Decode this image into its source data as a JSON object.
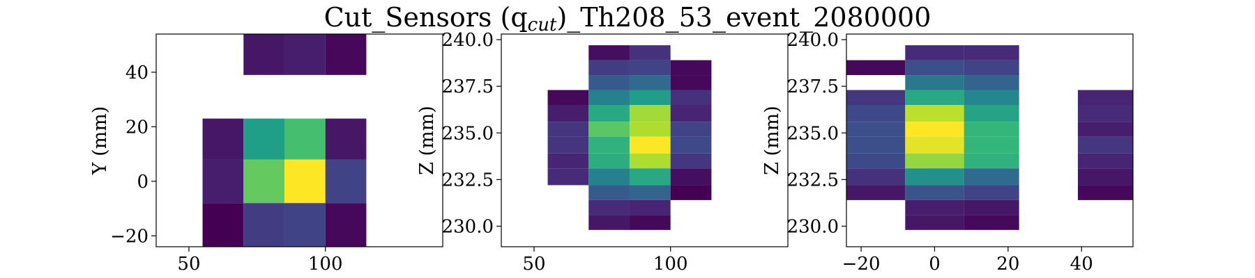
{
  "title": "Cut_Sensors (q",
  "title_sub": "cut",
  "title_rest": ")_Th208_53_event_2080000",
  "colormap": "viridis",
  "chart_data": [
    {
      "type": "heatmap",
      "xlabel": "",
      "ylabel": "Y (mm)",
      "xlim": [
        38,
        143
      ],
      "ylim": [
        -24,
        54
      ],
      "xticks": [
        {
          "v": 50,
          "label": "50"
        },
        {
          "v": 100,
          "label": "100"
        }
      ],
      "yticks": [
        {
          "v": -20,
          "label": "−20"
        },
        {
          "v": 0,
          "label": "0"
        },
        {
          "v": 20,
          "label": "20"
        },
        {
          "v": 40,
          "label": "40"
        }
      ],
      "cells": [
        {
          "x0": 70,
          "x1": 85,
          "y0": 39,
          "y1": 54,
          "v": 0.06
        },
        {
          "x0": 85,
          "x1": 100,
          "y0": 39,
          "y1": 54,
          "v": 0.08
        },
        {
          "x0": 100,
          "x1": 115,
          "y0": 39,
          "y1": 54,
          "v": 0.02
        },
        {
          "x0": 55,
          "x1": 70,
          "y0": 8,
          "y1": 23,
          "v": 0.06
        },
        {
          "x0": 70,
          "x1": 85,
          "y0": 8,
          "y1": 23,
          "v": 0.56
        },
        {
          "x0": 85,
          "x1": 100,
          "y0": 8,
          "y1": 23,
          "v": 0.7
        },
        {
          "x0": 100,
          "x1": 115,
          "y0": 8,
          "y1": 23,
          "v": 0.06
        },
        {
          "x0": 55,
          "x1": 70,
          "y0": -8,
          "y1": 8,
          "v": 0.08
        },
        {
          "x0": 70,
          "x1": 85,
          "y0": -8,
          "y1": 8,
          "v": 0.76
        },
        {
          "x0": 85,
          "x1": 100,
          "y0": -8,
          "y1": 8,
          "v": 1.0
        },
        {
          "x0": 100,
          "x1": 115,
          "y0": -8,
          "y1": 8,
          "v": 0.2
        },
        {
          "x0": 55,
          "x1": 70,
          "y0": -24,
          "y1": -8,
          "v": 0.0
        },
        {
          "x0": 70,
          "x1": 85,
          "y0": -24,
          "y1": -8,
          "v": 0.18
        },
        {
          "x0": 85,
          "x1": 100,
          "y0": -24,
          "y1": -8,
          "v": 0.2
        },
        {
          "x0": 100,
          "x1": 115,
          "y0": -24,
          "y1": -8,
          "v": 0.02
        }
      ]
    },
    {
      "type": "heatmap",
      "xlabel": "",
      "ylabel": "Z (mm)",
      "xlim": [
        38,
        143
      ],
      "ylim": [
        228.9,
        240.3
      ],
      "xticks": [
        {
          "v": 50,
          "label": "50"
        },
        {
          "v": 100,
          "label": "100"
        }
      ],
      "yticks": [
        {
          "v": 230,
          "label": "230.0"
        },
        {
          "v": 232.5,
          "label": "232.5"
        },
        {
          "v": 235,
          "label": "235.0"
        },
        {
          "v": 237.5,
          "label": "237.5"
        },
        {
          "v": 240,
          "label": "240.0"
        }
      ],
      "cells": [
        {
          "x0": 55,
          "x1": 70,
          "y0": 236.5,
          "y1": 237.3,
          "v": 0.02
        },
        {
          "x0": 55,
          "x1": 70,
          "y0": 235.6,
          "y1": 236.5,
          "v": 0.08
        },
        {
          "x0": 55,
          "x1": 70,
          "y0": 234.8,
          "y1": 235.6,
          "v": 0.15
        },
        {
          "x0": 55,
          "x1": 70,
          "y0": 233.9,
          "y1": 234.8,
          "v": 0.15
        },
        {
          "x0": 55,
          "x1": 70,
          "y0": 233.1,
          "y1": 233.9,
          "v": 0.1
        },
        {
          "x0": 55,
          "x1": 70,
          "y0": 232.2,
          "y1": 233.1,
          "v": 0.12
        },
        {
          "x0": 70,
          "x1": 85,
          "y0": 238.9,
          "y1": 239.7,
          "v": 0.04
        },
        {
          "x0": 70,
          "x1": 85,
          "y0": 238.1,
          "y1": 238.9,
          "v": 0.18
        },
        {
          "x0": 70,
          "x1": 85,
          "y0": 237.3,
          "y1": 238.1,
          "v": 0.28
        },
        {
          "x0": 70,
          "x1": 85,
          "y0": 236.5,
          "y1": 237.3,
          "v": 0.44
        },
        {
          "x0": 70,
          "x1": 85,
          "y0": 235.6,
          "y1": 236.5,
          "v": 0.6
        },
        {
          "x0": 70,
          "x1": 85,
          "y0": 234.8,
          "y1": 235.6,
          "v": 0.74
        },
        {
          "x0": 70,
          "x1": 85,
          "y0": 233.9,
          "y1": 234.8,
          "v": 0.64
        },
        {
          "x0": 70,
          "x1": 85,
          "y0": 233.1,
          "y1": 233.9,
          "v": 0.62
        },
        {
          "x0": 70,
          "x1": 85,
          "y0": 232.2,
          "y1": 233.1,
          "v": 0.44
        },
        {
          "x0": 70,
          "x1": 85,
          "y0": 231.4,
          "y1": 232.2,
          "v": 0.28
        },
        {
          "x0": 70,
          "x1": 85,
          "y0": 230.6,
          "y1": 231.4,
          "v": 0.12
        },
        {
          "x0": 70,
          "x1": 85,
          "y0": 229.8,
          "y1": 230.6,
          "v": 0.06
        },
        {
          "x0": 85,
          "x1": 100,
          "y0": 238.9,
          "y1": 239.7,
          "v": 0.14
        },
        {
          "x0": 85,
          "x1": 100,
          "y0": 238.1,
          "y1": 238.9,
          "v": 0.2
        },
        {
          "x0": 85,
          "x1": 100,
          "y0": 237.3,
          "y1": 238.1,
          "v": 0.34
        },
        {
          "x0": 85,
          "x1": 100,
          "y0": 236.5,
          "y1": 237.3,
          "v": 0.56
        },
        {
          "x0": 85,
          "x1": 100,
          "y0": 235.6,
          "y1": 236.5,
          "v": 0.86
        },
        {
          "x0": 85,
          "x1": 100,
          "y0": 234.8,
          "y1": 235.6,
          "v": 0.88
        },
        {
          "x0": 85,
          "x1": 100,
          "y0": 233.9,
          "y1": 234.8,
          "v": 1.0
        },
        {
          "x0": 85,
          "x1": 100,
          "y0": 233.1,
          "y1": 233.9,
          "v": 0.88
        },
        {
          "x0": 85,
          "x1": 100,
          "y0": 232.2,
          "y1": 233.1,
          "v": 0.6
        },
        {
          "x0": 85,
          "x1": 100,
          "y0": 231.4,
          "y1": 232.2,
          "v": 0.32
        },
        {
          "x0": 85,
          "x1": 100,
          "y0": 230.6,
          "y1": 231.4,
          "v": 0.1
        },
        {
          "x0": 85,
          "x1": 100,
          "y0": 229.8,
          "y1": 230.6,
          "v": 0.02
        },
        {
          "x0": 100,
          "x1": 115,
          "y0": 238.1,
          "y1": 238.9,
          "v": 0.02
        },
        {
          "x0": 100,
          "x1": 115,
          "y0": 237.3,
          "y1": 238.1,
          "v": 0.02
        },
        {
          "x0": 100,
          "x1": 115,
          "y0": 236.5,
          "y1": 237.3,
          "v": 0.14
        },
        {
          "x0": 100,
          "x1": 115,
          "y0": 235.6,
          "y1": 236.5,
          "v": 0.1
        },
        {
          "x0": 100,
          "x1": 115,
          "y0": 234.8,
          "y1": 235.6,
          "v": 0.2
        },
        {
          "x0": 100,
          "x1": 115,
          "y0": 233.9,
          "y1": 234.8,
          "v": 0.22
        },
        {
          "x0": 100,
          "x1": 115,
          "y0": 233.1,
          "y1": 233.9,
          "v": 0.16
        },
        {
          "x0": 100,
          "x1": 115,
          "y0": 232.2,
          "y1": 233.1,
          "v": 0.04
        },
        {
          "x0": 100,
          "x1": 115,
          "y0": 231.4,
          "y1": 232.2,
          "v": 0.0
        }
      ]
    },
    {
      "type": "heatmap",
      "xlabel": "",
      "ylabel": "Z (mm)",
      "xlim": [
        -24,
        54
      ],
      "ylim": [
        228.9,
        240.3
      ],
      "xticks": [
        {
          "v": -20,
          "label": "−20"
        },
        {
          "v": 0,
          "label": "0"
        },
        {
          "v": 20,
          "label": "20"
        },
        {
          "v": 40,
          "label": "40"
        }
      ],
      "yticks": [
        {
          "v": 230,
          "label": "230.0"
        },
        {
          "v": 232.5,
          "label": "232.5"
        },
        {
          "v": 235,
          "label": "235.0"
        },
        {
          "v": 237.5,
          "label": "237.5"
        },
        {
          "v": 240,
          "label": "240.0"
        }
      ],
      "cells": [
        {
          "x0": -24,
          "x1": -8,
          "y0": 238.1,
          "y1": 238.9,
          "v": 0.02
        },
        {
          "x0": -24,
          "x1": -8,
          "y0": 236.5,
          "y1": 237.3,
          "v": 0.16
        },
        {
          "x0": -24,
          "x1": -8,
          "y0": 235.6,
          "y1": 236.5,
          "v": 0.22
        },
        {
          "x0": -24,
          "x1": -8,
          "y0": 234.8,
          "y1": 235.6,
          "v": 0.24
        },
        {
          "x0": -24,
          "x1": -8,
          "y0": 233.9,
          "y1": 234.8,
          "v": 0.24
        },
        {
          "x0": -24,
          "x1": -8,
          "y0": 233.1,
          "y1": 233.9,
          "v": 0.22
        },
        {
          "x0": -24,
          "x1": -8,
          "y0": 232.2,
          "y1": 233.1,
          "v": 0.14
        },
        {
          "x0": -24,
          "x1": -8,
          "y0": 231.4,
          "y1": 232.2,
          "v": 0.06
        },
        {
          "x0": -8,
          "x1": 8,
          "y0": 238.9,
          "y1": 239.7,
          "v": 0.12
        },
        {
          "x0": -8,
          "x1": 8,
          "y0": 238.1,
          "y1": 238.9,
          "v": 0.24
        },
        {
          "x0": -8,
          "x1": 8,
          "y0": 237.3,
          "y1": 238.1,
          "v": 0.4
        },
        {
          "x0": -8,
          "x1": 8,
          "y0": 236.5,
          "y1": 237.3,
          "v": 0.6
        },
        {
          "x0": -8,
          "x1": 8,
          "y0": 235.6,
          "y1": 236.5,
          "v": 0.9
        },
        {
          "x0": -8,
          "x1": 8,
          "y0": 234.8,
          "y1": 235.6,
          "v": 1.0
        },
        {
          "x0": -8,
          "x1": 8,
          "y0": 233.9,
          "y1": 234.8,
          "v": 0.96
        },
        {
          "x0": -8,
          "x1": 8,
          "y0": 233.1,
          "y1": 233.9,
          "v": 0.84
        },
        {
          "x0": -8,
          "x1": 8,
          "y0": 232.2,
          "y1": 233.1,
          "v": 0.5
        },
        {
          "x0": -8,
          "x1": 8,
          "y0": 231.4,
          "y1": 232.2,
          "v": 0.26
        },
        {
          "x0": -8,
          "x1": 8,
          "y0": 230.6,
          "y1": 231.4,
          "v": 0.08
        },
        {
          "x0": -8,
          "x1": 8,
          "y0": 229.8,
          "y1": 230.6,
          "v": 0.06
        },
        {
          "x0": 8,
          "x1": 23,
          "y0": 238.9,
          "y1": 239.7,
          "v": 0.12
        },
        {
          "x0": 8,
          "x1": 23,
          "y0": 238.1,
          "y1": 238.9,
          "v": 0.2
        },
        {
          "x0": 8,
          "x1": 23,
          "y0": 237.3,
          "y1": 238.1,
          "v": 0.32
        },
        {
          "x0": 8,
          "x1": 23,
          "y0": 236.5,
          "y1": 237.3,
          "v": 0.46
        },
        {
          "x0": 8,
          "x1": 23,
          "y0": 235.6,
          "y1": 236.5,
          "v": 0.58
        },
        {
          "x0": 8,
          "x1": 23,
          "y0": 234.8,
          "y1": 235.6,
          "v": 0.66
        },
        {
          "x0": 8,
          "x1": 23,
          "y0": 233.9,
          "y1": 234.8,
          "v": 0.66
        },
        {
          "x0": 8,
          "x1": 23,
          "y0": 233.1,
          "y1": 233.9,
          "v": 0.64
        },
        {
          "x0": 8,
          "x1": 23,
          "y0": 232.2,
          "y1": 233.1,
          "v": 0.34
        },
        {
          "x0": 8,
          "x1": 23,
          "y0": 231.4,
          "y1": 232.2,
          "v": 0.2
        },
        {
          "x0": 8,
          "x1": 23,
          "y0": 230.6,
          "y1": 231.4,
          "v": 0.06
        },
        {
          "x0": 8,
          "x1": 23,
          "y0": 229.8,
          "y1": 230.6,
          "v": 0.02
        },
        {
          "x0": 39,
          "x1": 54,
          "y0": 236.5,
          "y1": 237.3,
          "v": 0.1
        },
        {
          "x0": 39,
          "x1": 54,
          "y0": 235.6,
          "y1": 236.5,
          "v": 0.12
        },
        {
          "x0": 39,
          "x1": 54,
          "y0": 234.8,
          "y1": 235.6,
          "v": 0.08
        },
        {
          "x0": 39,
          "x1": 54,
          "y0": 233.9,
          "y1": 234.8,
          "v": 0.16
        },
        {
          "x0": 39,
          "x1": 54,
          "y0": 233.1,
          "y1": 233.9,
          "v": 0.1
        },
        {
          "x0": 39,
          "x1": 54,
          "y0": 232.2,
          "y1": 233.1,
          "v": 0.06
        },
        {
          "x0": 39,
          "x1": 54,
          "y0": 231.4,
          "y1": 232.2,
          "v": 0.02
        }
      ]
    }
  ]
}
